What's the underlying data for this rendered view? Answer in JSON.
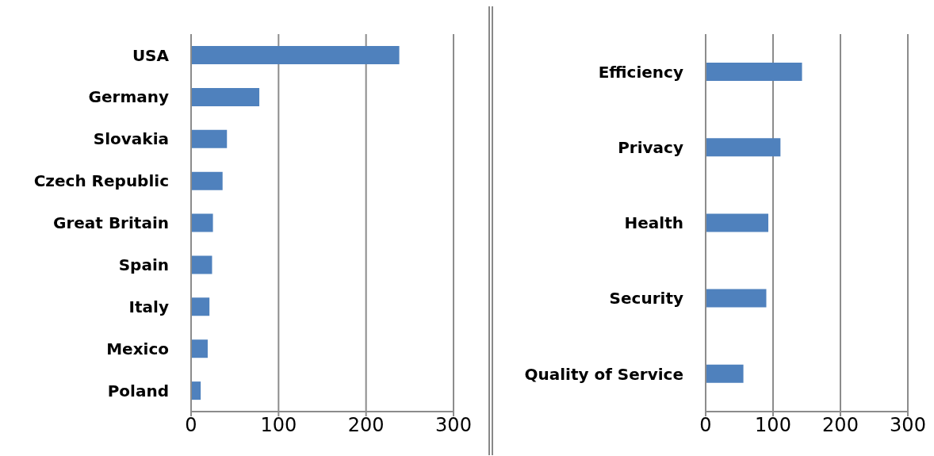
{
  "chart_data": [
    {
      "type": "bar",
      "orientation": "horizontal",
      "categories": [
        "USA",
        "Germany",
        "Slovakia",
        "Czech Republic",
        "Great Britain",
        "Spain",
        "Italy",
        "Mexico",
        "Poland"
      ],
      "values": [
        238,
        78,
        41,
        36,
        25,
        24,
        21,
        19,
        11
      ],
      "color": "#4f81bd",
      "xlim": [
        0,
        300
      ],
      "xticks": [
        0,
        100,
        200,
        300
      ],
      "grid": "x"
    },
    {
      "type": "bar",
      "orientation": "horizontal",
      "categories": [
        "Efficiency",
        "Privacy",
        "Health",
        "Security",
        "Quality of Service"
      ],
      "values": [
        143,
        111,
        93,
        90,
        56
      ],
      "color": "#4f81bd",
      "xlim": [
        0,
        300
      ],
      "xticks": [
        0,
        100,
        200,
        300
      ],
      "grid": "x"
    }
  ]
}
